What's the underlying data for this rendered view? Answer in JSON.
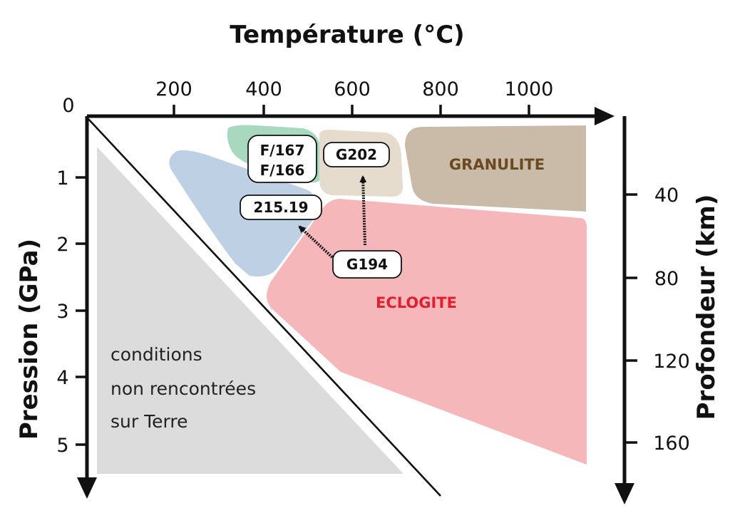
{
  "titles": {
    "x_axis": "Température (°C)",
    "y_axis_left": "Pression (GPa)",
    "y_axis_right": "Profondeur (km)"
  },
  "ticks": {
    "temperature": [
      "200",
      "400",
      "600",
      "800",
      "1000"
    ],
    "pressure": [
      "0",
      "1",
      "2",
      "3",
      "4",
      "5"
    ],
    "depth": [
      "40",
      "80",
      "120",
      "160"
    ]
  },
  "facies": {
    "granulite": "GRANULITE",
    "eclogite": "ECLOGITE"
  },
  "forbidden_zone": {
    "line1": "conditions",
    "line2": "non rencontrées",
    "line3": "sur Terre"
  },
  "samples": {
    "f167": "F/167",
    "f166": "F/166",
    "g202": "G202",
    "s21519": "215.19",
    "g194": "G194"
  },
  "colors": {
    "green_field": "#a8d8bd",
    "blue_field": "#bed0e4",
    "tan_field": "#e6dccd",
    "granulite_field": "#c9bba8",
    "eclogite_field": "#f6b7bb",
    "forbidden_field": "#dcdcdc",
    "granulite_text": "#6b4a22",
    "eclogite_text": "#e0202e"
  }
}
